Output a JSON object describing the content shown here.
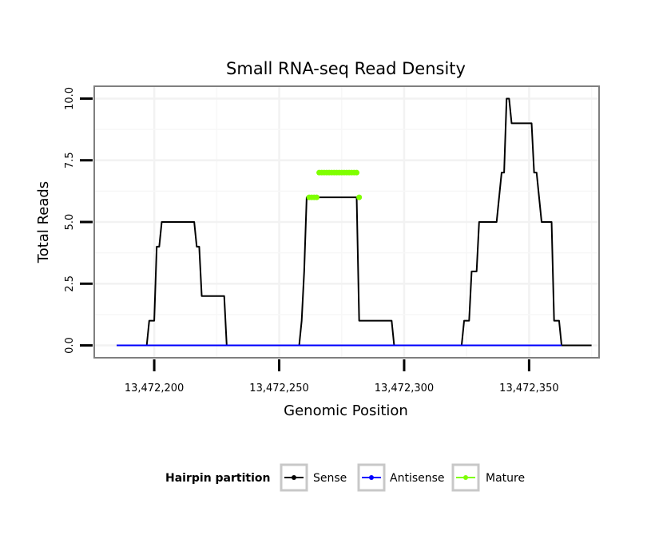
{
  "chart_data": {
    "type": "line",
    "title": "Small RNA-seq Read Density",
    "xlabel": "Genomic Position",
    "ylabel": "Total Reads",
    "xlim": [
      13472176,
      13472378
    ],
    "ylim": [
      -0.5,
      10.5
    ],
    "x_ticks": [
      13472200,
      13472250,
      13472300,
      13472350
    ],
    "x_tick_labels": [
      "13,472,200",
      "13,472,250",
      "13,472,300",
      "13,472,350"
    ],
    "y_ticks": [
      0,
      2.5,
      5,
      7.5,
      10
    ],
    "y_tick_labels": [
      "0.0",
      "2.5",
      "5.0",
      "7.5",
      "10.0"
    ],
    "grid": true,
    "legend": {
      "title": "Hairpin partition",
      "position": "bottom",
      "entries": [
        {
          "label": "Sense",
          "color": "#000000"
        },
        {
          "label": "Antisense",
          "color": "#0000ff"
        },
        {
          "label": "Mature",
          "color": "#7fff00"
        }
      ]
    },
    "series": [
      {
        "name": "Sense",
        "color": "#000000",
        "x": [
          13472185,
          13472197,
          13472198,
          13472199,
          13472200,
          13472201,
          13472202,
          13472203,
          13472216,
          13472217,
          13472218,
          13472219,
          13472228,
          13472229,
          13472258,
          13472259,
          13472260,
          13472261,
          13472262,
          13472281,
          13472282,
          13472283,
          13472295,
          13472296,
          13472323,
          13472324,
          13472326,
          13472327,
          13472329,
          13472330,
          13472337,
          13472338,
          13472339,
          13472340,
          13472341,
          13472342,
          13472343,
          13472351,
          13472352,
          13472353,
          13472355,
          13472356,
          13472359,
          13472360,
          13472361,
          13472362,
          13472363,
          13472375
        ],
        "y": [
          0,
          0,
          1,
          1,
          1,
          4,
          4,
          5,
          5,
          4,
          4,
          2,
          2,
          0,
          0,
          1,
          3,
          6,
          6,
          6,
          1,
          1,
          1,
          0,
          0,
          1,
          1,
          3,
          3,
          5,
          5,
          6,
          7,
          7,
          10,
          10,
          9,
          9,
          7,
          7,
          5,
          5,
          5,
          1,
          1,
          1,
          0,
          0
        ]
      },
      {
        "name": "Antisense",
        "color": "#0000ff",
        "x": [
          13472185,
          13472363
        ],
        "y": [
          0,
          0
        ]
      },
      {
        "name": "Mature",
        "color": "#7fff00",
        "x": [
          13472262,
          13472263,
          13472264,
          13472265,
          13472266,
          13472267,
          13472268,
          13472269,
          13472270,
          13472271,
          13472272,
          13472273,
          13472274,
          13472275,
          13472276,
          13472277,
          13472278,
          13472279,
          13472280,
          13472281,
          13472282
        ],
        "y": [
          6,
          6,
          6,
          6,
          7,
          7,
          7,
          7,
          7,
          7,
          7,
          7,
          7,
          7,
          7,
          7,
          7,
          7,
          7,
          7,
          6
        ],
        "segments": [
          [
            0,
            3
          ],
          [
            4,
            19
          ],
          [
            20,
            20
          ]
        ]
      }
    ]
  }
}
